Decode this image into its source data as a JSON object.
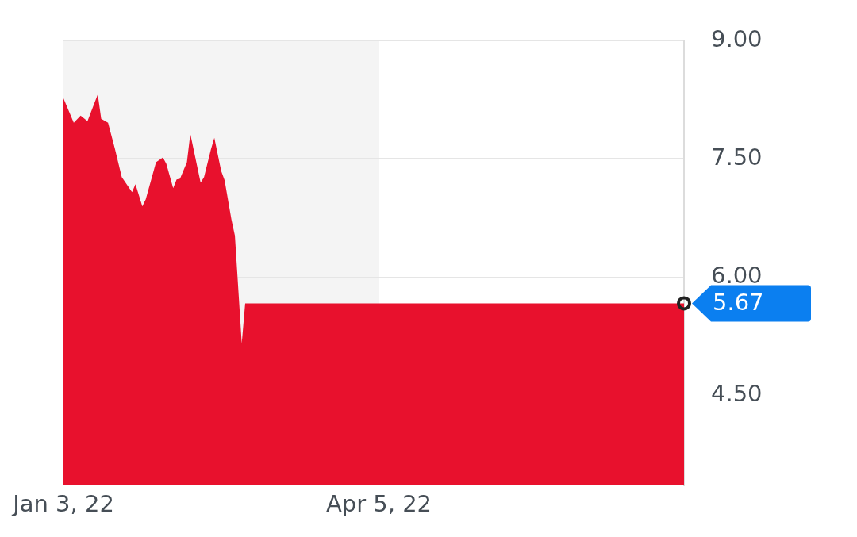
{
  "chart_data": {
    "type": "area",
    "x": [
      "2022-01-03",
      "2022-01-06",
      "2022-01-08",
      "2022-01-10",
      "2022-01-13",
      "2022-01-14",
      "2022-01-16",
      "2022-01-18",
      "2022-01-20",
      "2022-01-23",
      "2022-01-24",
      "2022-01-26",
      "2022-01-27",
      "2022-01-30",
      "2022-02-01",
      "2022-02-02",
      "2022-02-04",
      "2022-02-05",
      "2022-02-06",
      "2022-02-08",
      "2022-02-09",
      "2022-02-12",
      "2022-02-13",
      "2022-02-15",
      "2022-02-16",
      "2022-02-18",
      "2022-02-19",
      "2022-02-21",
      "2022-02-22",
      "2022-02-24",
      "2022-02-25",
      "2022-07-03"
    ],
    "values": [
      8.27,
      7.96,
      8.05,
      7.98,
      8.32,
      8.01,
      7.96,
      7.63,
      7.27,
      7.08,
      7.18,
      6.9,
      6.99,
      7.46,
      7.52,
      7.44,
      7.13,
      7.24,
      7.25,
      7.46,
      7.82,
      7.2,
      7.27,
      7.62,
      7.77,
      7.35,
      7.23,
      6.73,
      6.53,
      5.16,
      5.67,
      5.67
    ],
    "color": "#e8112d",
    "xlim": [
      "2022-01-03",
      "2022-07-03"
    ],
    "xticks": [
      {
        "value": "2022-01-03",
        "label": "Jan 3, 22"
      },
      {
        "value": "2022-04-05",
        "label": "Apr 5, 22"
      }
    ],
    "ylim": [
      3.36,
      9
    ],
    "yticks": [
      {
        "value": 4.5,
        "label": "4.50"
      },
      {
        "value": 6,
        "label": "6.00"
      },
      {
        "value": 7.5,
        "label": "7.50"
      },
      {
        "value": 9,
        "label": "9.00"
      }
    ],
    "grid": "y",
    "bands": [
      {
        "axis": "x",
        "from": "2022-01-03",
        "to": "2022-04-05",
        "color": "#f4f4f4"
      }
    ],
    "annotations": [
      {
        "text": "5.67",
        "x": "2022-07-03",
        "y": 5.67
      }
    ]
  }
}
